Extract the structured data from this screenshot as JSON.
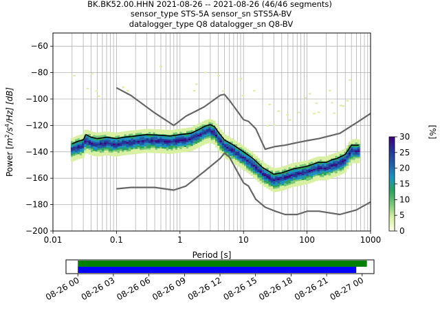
{
  "title_lines": [
    "BK.BK52.00.HHN   2021-08-26 -- 2021-08-26  (46/46 segments)",
    "sensor_type STS-5A sensor_sn STS5A-BV",
    "datalogger_type Q8 datalogger_sn Q8-BV"
  ],
  "chart_data": {
    "type": "heatmap",
    "xlabel": "Period [s]",
    "ylabel": "Power [m²/s⁴/Hz] [dB]",
    "ylabel_parts": {
      "a": "Power [",
      "m": "m",
      "two": "2",
      "s": "/s",
      "four": "4",
      "hz": "/Hz] [dB]"
    },
    "x_scale": "log",
    "xlim": [
      0.01,
      1000
    ],
    "ylim": [
      -200,
      -50
    ],
    "xticks": [
      0.01,
      0.1,
      1,
      10,
      100,
      1000
    ],
    "xtick_labels": [
      "0.01",
      "0.1",
      "1",
      "10",
      "100",
      "1000"
    ],
    "yticks": [
      -200,
      -180,
      -160,
      -140,
      -120,
      -100,
      -80,
      -60
    ],
    "ytick_labels": [
      "−200",
      "−180",
      "−160",
      "−140",
      "−120",
      "−100",
      "−80",
      "−60"
    ],
    "grid": true,
    "colorbar": {
      "label": "[%]",
      "range": [
        0,
        30
      ],
      "ticks": [
        0,
        5,
        10,
        15,
        20,
        25,
        30
      ],
      "tick_labels": [
        "0",
        "5",
        "10",
        "15",
        "20",
        "25",
        "30"
      ],
      "colors": [
        "#ffffe5",
        "#d9f0a3",
        "#78c679",
        "#2ca25f",
        "#1d91c0",
        "#225ea8",
        "#253494",
        "#3f007d"
      ]
    },
    "series": [
      {
        "name": "noise-model-high",
        "color": "#666666",
        "points": [
          [
            0.1,
            -91.5
          ],
          [
            0.17,
            -97.4
          ],
          [
            0.4,
            -110.5
          ],
          [
            0.8,
            -120
          ],
          [
            1.24,
            -113
          ],
          [
            2.4,
            -106
          ],
          [
            4.3,
            -97.2
          ],
          [
            5,
            -96.5
          ],
          [
            6,
            -101
          ],
          [
            10,
            -115.6
          ],
          [
            12,
            -117
          ],
          [
            15.6,
            -122.5
          ],
          [
            21.9,
            -138
          ],
          [
            31.6,
            -136
          ],
          [
            45,
            -135
          ],
          [
            70,
            -133
          ],
          [
            101,
            -131.5
          ],
          [
            154,
            -130
          ],
          [
            328,
            -126
          ],
          [
            600,
            -118
          ],
          [
            1000,
            -111
          ]
        ]
      },
      {
        "name": "noise-model-low",
        "color": "#666666",
        "points": [
          [
            0.1,
            -168
          ],
          [
            0.17,
            -167
          ],
          [
            0.4,
            -167
          ],
          [
            0.8,
            -169
          ],
          [
            1.24,
            -166
          ],
          [
            2.4,
            -155
          ],
          [
            4.3,
            -145
          ],
          [
            5,
            -141
          ],
          [
            6,
            -144
          ],
          [
            10,
            -163.5
          ],
          [
            12,
            -166
          ],
          [
            15.6,
            -176
          ],
          [
            21.9,
            -182
          ],
          [
            31.6,
            -185
          ],
          [
            45,
            -187.5
          ],
          [
            70,
            -187.5
          ],
          [
            101,
            -185
          ],
          [
            154,
            -185
          ],
          [
            328,
            -187.5
          ],
          [
            600,
            -184
          ],
          [
            1000,
            -178
          ]
        ]
      },
      {
        "name": "mean-psd",
        "color": "#000000",
        "points": [
          [
            0.02,
            -134
          ],
          [
            0.025,
            -132
          ],
          [
            0.03,
            -131
          ],
          [
            0.033,
            -127
          ],
          [
            0.04,
            -129
          ],
          [
            0.05,
            -130
          ],
          [
            0.07,
            -129
          ],
          [
            0.1,
            -130
          ],
          [
            0.13,
            -129
          ],
          [
            0.2,
            -128
          ],
          [
            0.3,
            -127
          ],
          [
            0.5,
            -127.5
          ],
          [
            0.7,
            -128
          ],
          [
            1,
            -127
          ],
          [
            1.5,
            -126
          ],
          [
            2,
            -123
          ],
          [
            2.5,
            -120.5
          ],
          [
            3,
            -119.5
          ],
          [
            3.5,
            -121
          ],
          [
            4,
            -125
          ],
          [
            5,
            -131
          ],
          [
            7,
            -135
          ],
          [
            10,
            -140
          ],
          [
            14,
            -145
          ],
          [
            20,
            -152
          ],
          [
            30,
            -157
          ],
          [
            40,
            -156
          ],
          [
            60,
            -153
          ],
          [
            100,
            -151
          ],
          [
            150,
            -148
          ],
          [
            200,
            -148
          ],
          [
            250,
            -146
          ],
          [
            300,
            -145
          ],
          [
            400,
            -142
          ],
          [
            500,
            -135
          ],
          [
            650,
            -135
          ]
        ]
      }
    ],
    "time_coverage": {
      "xtick_labels": [
        "08-26 00",
        "08-26 03",
        "08-26 06",
        "08-26 09",
        "08-26 12",
        "08-26 15",
        "08-26 18",
        "08-26 21",
        "08-27 00"
      ],
      "range_hours": [
        -1,
        25
      ],
      "bars": [
        {
          "name": "data-gaps",
          "color": "#008000",
          "start_hour": 0,
          "end_hour": 24.4
        },
        {
          "name": "psd-segments",
          "color": "#0000ff",
          "start_hour": 0,
          "end_hour": 23.5
        }
      ]
    }
  }
}
